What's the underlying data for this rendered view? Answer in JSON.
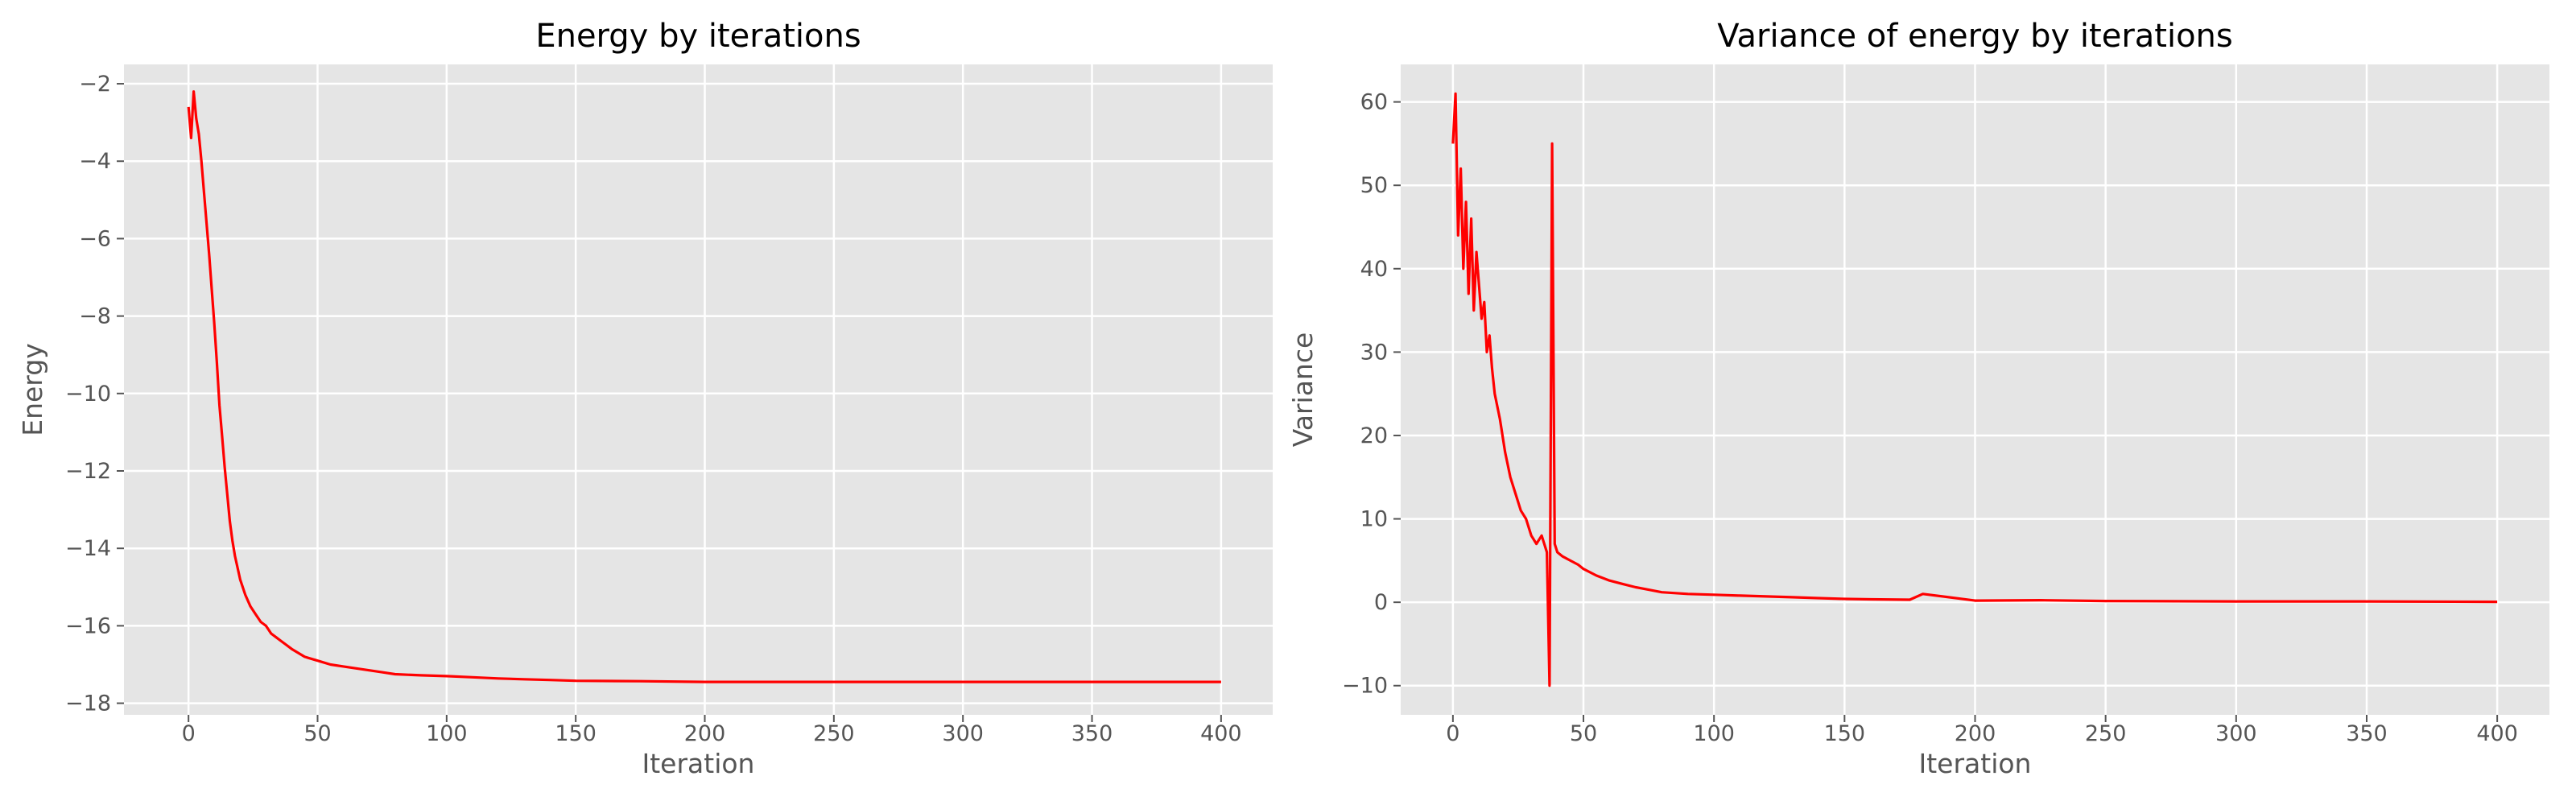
{
  "chart_data": [
    {
      "type": "line",
      "title": "Energy by iterations",
      "xlabel": "Iteration",
      "ylabel": "Energy",
      "xlim": [
        -25,
        420
      ],
      "ylim": [
        -18.3,
        -1.5
      ],
      "xticks": [
        0,
        50,
        100,
        150,
        200,
        250,
        300,
        350,
        400
      ],
      "yticks": [
        -18,
        -16,
        -14,
        -12,
        -10,
        -8,
        -6,
        -4,
        -2
      ],
      "grid": true,
      "color": "#ff0000",
      "series": [
        {
          "x": [
            0,
            1,
            2,
            3,
            4,
            5,
            6,
            7,
            8,
            9,
            10,
            11,
            12,
            13,
            14,
            15,
            16,
            17,
            18,
            19,
            20,
            22,
            24,
            26,
            28,
            30,
            32,
            34,
            36,
            38,
            40,
            45,
            50,
            55,
            60,
            65,
            70,
            75,
            80,
            90,
            100,
            110,
            120,
            130,
            140,
            150,
            175,
            200,
            250,
            300,
            350,
            400
          ],
          "values": [
            -2.6,
            -3.4,
            -2.2,
            -2.9,
            -3.3,
            -4.0,
            -4.8,
            -5.6,
            -6.4,
            -7.3,
            -8.2,
            -9.2,
            -10.3,
            -11.1,
            -11.9,
            -12.6,
            -13.3,
            -13.8,
            -14.2,
            -14.5,
            -14.8,
            -15.2,
            -15.5,
            -15.7,
            -15.9,
            -16.0,
            -16.2,
            -16.3,
            -16.4,
            -16.5,
            -16.6,
            -16.8,
            -16.9,
            -17.0,
            -17.05,
            -17.1,
            -17.15,
            -17.2,
            -17.25,
            -17.28,
            -17.3,
            -17.33,
            -17.36,
            -17.38,
            -17.4,
            -17.42,
            -17.43,
            -17.45,
            -17.45,
            -17.45,
            -17.45,
            -17.45
          ]
        }
      ]
    },
    {
      "type": "line",
      "title": "Variance of energy by iterations",
      "xlabel": "Iteration",
      "ylabel": "Variance",
      "xlim": [
        -20,
        420
      ],
      "ylim": [
        -13.5,
        64.5
      ],
      "xticks": [
        0,
        50,
        100,
        150,
        200,
        250,
        300,
        350,
        400
      ],
      "yticks": [
        -10,
        0,
        10,
        20,
        30,
        40,
        50,
        60
      ],
      "grid": true,
      "color": "#ff0000",
      "series": [
        {
          "x": [
            0,
            1,
            2,
            3,
            4,
            5,
            6,
            7,
            8,
            9,
            10,
            11,
            12,
            13,
            14,
            15,
            16,
            18,
            20,
            22,
            24,
            26,
            28,
            30,
            32,
            34,
            36,
            37,
            38,
            39,
            40,
            42,
            45,
            48,
            50,
            55,
            60,
            65,
            70,
            75,
            80,
            90,
            100,
            110,
            120,
            130,
            140,
            150,
            160,
            175,
            180,
            200,
            225,
            250,
            300,
            350,
            400
          ],
          "values": [
            55,
            61,
            44,
            52,
            40,
            48,
            37,
            46,
            35,
            42,
            38,
            34,
            36,
            30,
            32,
            28,
            25,
            22,
            18,
            15,
            13,
            11,
            10,
            8,
            7,
            8,
            6,
            -10,
            55,
            7,
            6,
            5.5,
            5,
            4.5,
            4,
            3.2,
            2.6,
            2.2,
            1.8,
            1.5,
            1.2,
            1.0,
            0.9,
            0.8,
            0.7,
            0.6,
            0.5,
            0.4,
            0.35,
            0.3,
            1.0,
            0.2,
            0.25,
            0.15,
            0.1,
            0.1,
            0.05
          ]
        }
      ]
    }
  ]
}
